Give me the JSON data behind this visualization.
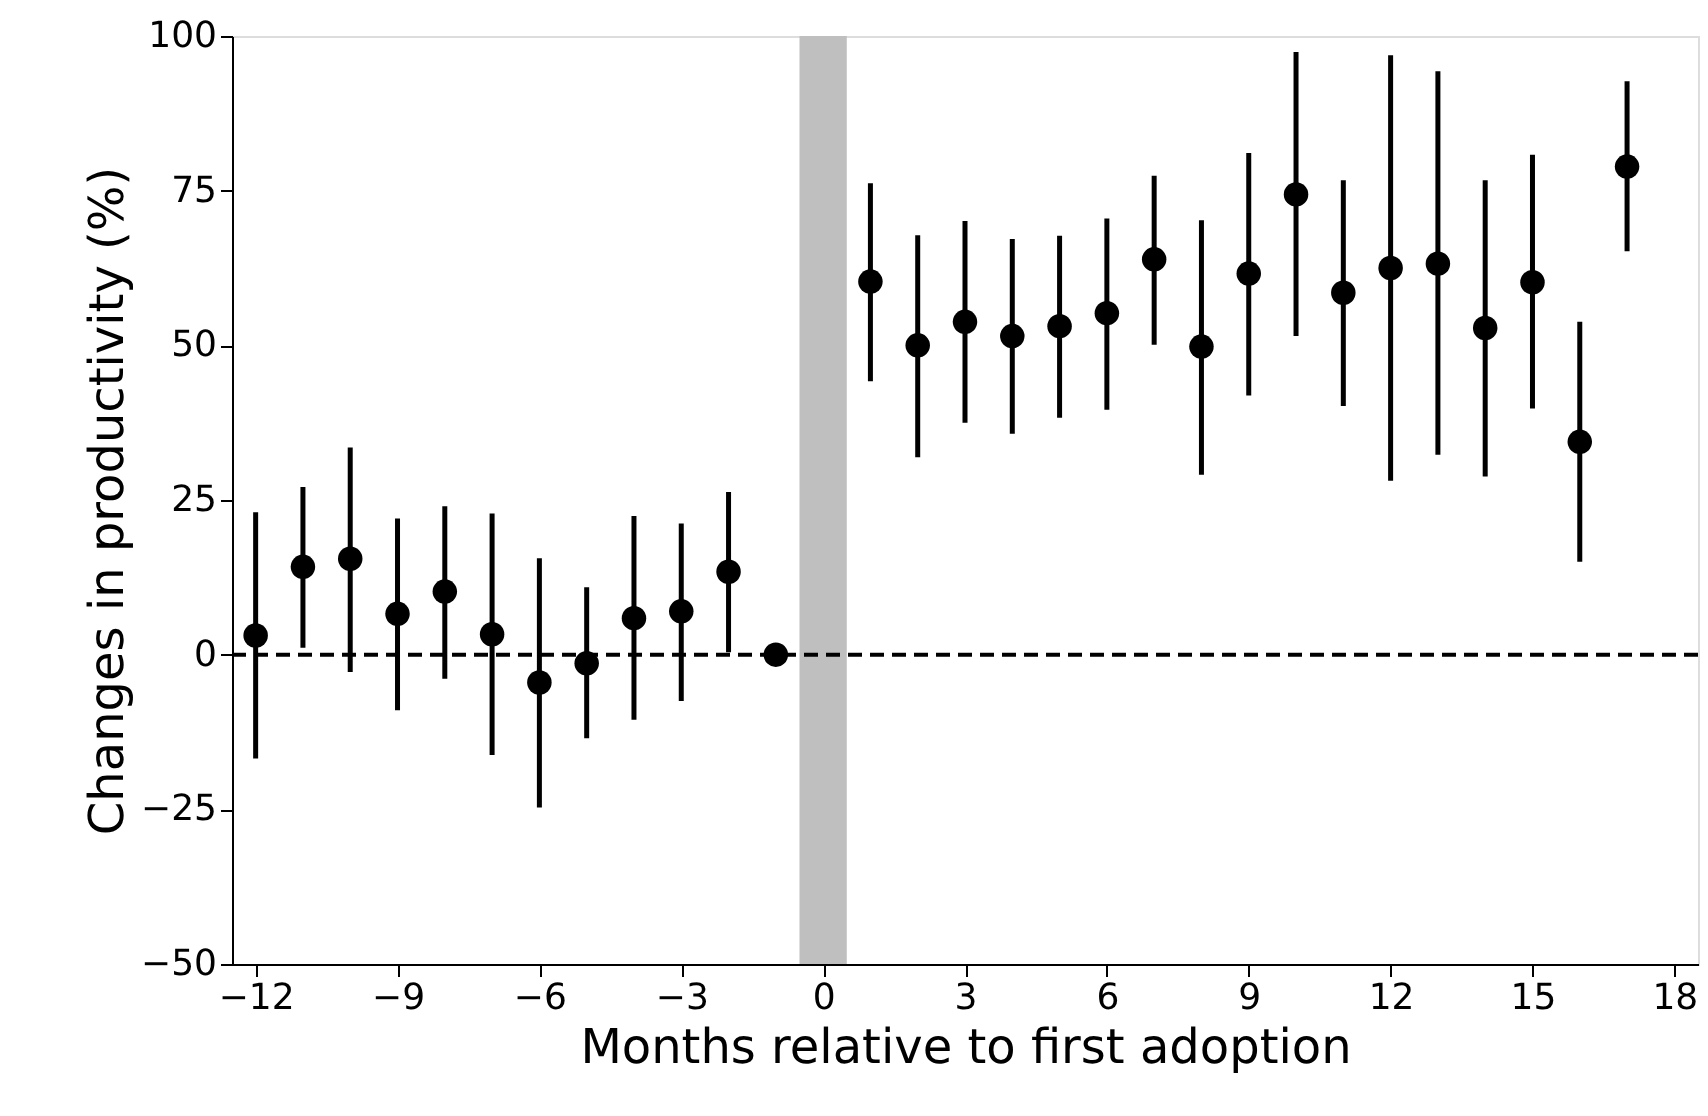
{
  "chart_data": {
    "type": "scatter",
    "xlabel": "Months relative to first adoption",
    "ylabel": "Changes in productivity (%)",
    "x": [
      -12,
      -11,
      -10,
      -9,
      -8,
      -7,
      -6,
      -5,
      -4,
      -3,
      -2,
      -1,
      1,
      2,
      3,
      4,
      5,
      6,
      7,
      8,
      9,
      10,
      11,
      12,
      13,
      14,
      15,
      16,
      17
    ],
    "series": [
      {
        "color": "#000000",
        "values": [
          3.1,
          14.2,
          15.5,
          6.6,
          10.2,
          3.3,
          -4.5,
          -1.4,
          5.9,
          7.0,
          13.4,
          0,
          60.3,
          50.0,
          53.8,
          51.5,
          53.1,
          55.2,
          63.9,
          49.8,
          61.6,
          74.4,
          58.5,
          62.5,
          63.2,
          52.8,
          60.2,
          34.4,
          78.9
        ],
        "errors": [
          [
            -16.8,
            23.0
          ],
          [
            1.1,
            27.1
          ],
          [
            -2.8,
            33.5
          ],
          [
            -9.0,
            22.0
          ],
          [
            -3.9,
            24.0
          ],
          [
            -16.2,
            22.8
          ],
          [
            -24.7,
            15.6
          ],
          [
            -13.5,
            10.9
          ],
          [
            -10.5,
            22.4
          ],
          [
            -7.5,
            21.2
          ],
          [
            0.4,
            26.3
          ],
          null,
          [
            44.2,
            76.2
          ],
          [
            31.9,
            67.8
          ],
          [
            37.5,
            70.1
          ],
          [
            35.7,
            67.2
          ],
          [
            38.3,
            67.7
          ],
          [
            39.6,
            70.5
          ],
          [
            50.1,
            77.4
          ],
          [
            29.1,
            70.2
          ],
          [
            41.9,
            81.1
          ],
          [
            51.5,
            97.4
          ],
          [
            40.2,
            76.7
          ],
          [
            28.1,
            96.9
          ],
          [
            32.3,
            94.3
          ],
          [
            28.8,
            76.7
          ],
          [
            39.8,
            80.8
          ],
          [
            15.0,
            53.8
          ],
          [
            65.2,
            92.7
          ]
        ]
      }
    ],
    "xlim": [
      -12.5,
      18.5
    ],
    "ylim": [
      -50,
      100
    ],
    "xticks": [
      {
        "value": -12,
        "label": "−12"
      },
      {
        "value": -9,
        "label": "−9"
      },
      {
        "value": -6,
        "label": "−6"
      },
      {
        "value": -3,
        "label": "−3"
      },
      0,
      3,
      6,
      9,
      12,
      15,
      18
    ],
    "yticks": [
      {
        "value": -50,
        "label": "−50"
      },
      {
        "value": -25,
        "label": "−25"
      },
      0,
      25,
      50,
      75,
      100
    ],
    "ref_lines": [
      {
        "axis": "y",
        "value": 0,
        "color": "#000000",
        "line_style": "dashed"
      }
    ],
    "bands": [
      {
        "axis": "x",
        "from": -0.5,
        "to": 0.5,
        "color": "#bfbfbf"
      }
    ],
    "marker": "circle",
    "grid": false
  }
}
